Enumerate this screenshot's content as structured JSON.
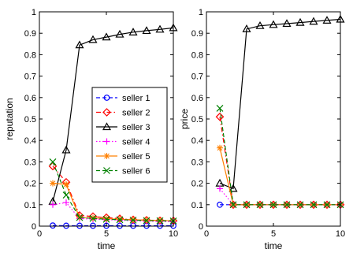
{
  "chart_data": [
    {
      "type": "line",
      "ylabel": "reputation",
      "xlabel": "time",
      "xlim": [
        0,
        10
      ],
      "ylim": [
        0,
        1
      ],
      "xticks": [
        "0",
        "5",
        "10"
      ],
      "yticks": [
        "0",
        "0.1",
        "0.2",
        "0.3",
        "0.4",
        "0.5",
        "0.6",
        "0.7",
        "0.8",
        "0.9",
        "1"
      ],
      "grid": false,
      "legend": "center",
      "x": [
        1,
        2,
        3,
        4,
        5,
        6,
        7,
        8,
        9,
        10
      ],
      "series": [
        {
          "name": "seller 1",
          "color": "#0000ff",
          "marker": "circle",
          "dash": "dashed",
          "values": [
            0.003,
            0.002,
            0.002,
            0.002,
            0.002,
            0.002,
            0.002,
            0.002,
            0.002,
            0.002
          ]
        },
        {
          "name": "seller 2",
          "color": "#ff0000",
          "marker": "diamond",
          "dash": "dashdot",
          "values": [
            0.28,
            0.205,
            0.05,
            0.045,
            0.04,
            0.035,
            0.03,
            0.028,
            0.026,
            0.025
          ]
        },
        {
          "name": "seller 3",
          "color": "#000000",
          "marker": "triangle",
          "dash": "solid",
          "values": [
            0.115,
            0.355,
            0.845,
            0.87,
            0.882,
            0.895,
            0.905,
            0.912,
            0.918,
            0.925
          ]
        },
        {
          "name": "seller 4",
          "color": "#ff00ff",
          "marker": "plus",
          "dash": "dotted",
          "values": [
            0.1,
            0.11,
            0.035,
            0.033,
            0.03,
            0.028,
            0.025,
            0.023,
            0.022,
            0.02
          ]
        },
        {
          "name": "seller 5",
          "color": "#ff8000",
          "marker": "star",
          "dash": "solid",
          "values": [
            0.2,
            0.195,
            0.04,
            0.038,
            0.035,
            0.032,
            0.03,
            0.028,
            0.027,
            0.025
          ]
        },
        {
          "name": "seller 6",
          "color": "#008000",
          "marker": "x",
          "dash": "dashed",
          "values": [
            0.3,
            0.145,
            0.04,
            0.036,
            0.032,
            0.03,
            0.028,
            0.026,
            0.025,
            0.024
          ]
        }
      ]
    },
    {
      "type": "line",
      "ylabel": "price",
      "xlabel": "time",
      "xlim": [
        0,
        10
      ],
      "ylim": [
        0,
        1
      ],
      "xticks": [
        "0",
        "5",
        "10"
      ],
      "yticks": [
        "0",
        "0.1",
        "0.2",
        "0.3",
        "0.4",
        "0.5",
        "0.6",
        "0.7",
        "0.8",
        "0.9",
        "1"
      ],
      "grid": false,
      "x": [
        1,
        2,
        3,
        4,
        5,
        6,
        7,
        8,
        9,
        10
      ],
      "series": [
        {
          "name": "seller 1",
          "color": "#0000ff",
          "marker": "circle",
          "dash": "dashed",
          "values": [
            0.1,
            0.1,
            0.1,
            0.1,
            0.1,
            0.1,
            0.1,
            0.1,
            0.1,
            0.1
          ]
        },
        {
          "name": "seller 2",
          "color": "#ff0000",
          "marker": "diamond",
          "dash": "dashdot",
          "values": [
            0.51,
            0.1,
            0.1,
            0.1,
            0.1,
            0.1,
            0.1,
            0.1,
            0.1,
            0.1
          ]
        },
        {
          "name": "seller 3",
          "color": "#000000",
          "marker": "triangle",
          "dash": "solid",
          "values": [
            0.2,
            0.175,
            0.92,
            0.935,
            0.94,
            0.945,
            0.95,
            0.955,
            0.96,
            0.965
          ]
        },
        {
          "name": "seller 4",
          "color": "#ff00ff",
          "marker": "plus",
          "dash": "dotted",
          "values": [
            0.175,
            0.1,
            0.1,
            0.1,
            0.1,
            0.1,
            0.1,
            0.1,
            0.1,
            0.1
          ]
        },
        {
          "name": "seller 5",
          "color": "#ff8000",
          "marker": "star",
          "dash": "solid",
          "values": [
            0.365,
            0.1,
            0.1,
            0.1,
            0.1,
            0.1,
            0.1,
            0.1,
            0.1,
            0.1
          ]
        },
        {
          "name": "seller 6",
          "color": "#008000",
          "marker": "x",
          "dash": "dashed",
          "values": [
            0.55,
            0.1,
            0.1,
            0.1,
            0.1,
            0.1,
            0.1,
            0.1,
            0.1,
            0.1
          ]
        }
      ]
    }
  ]
}
